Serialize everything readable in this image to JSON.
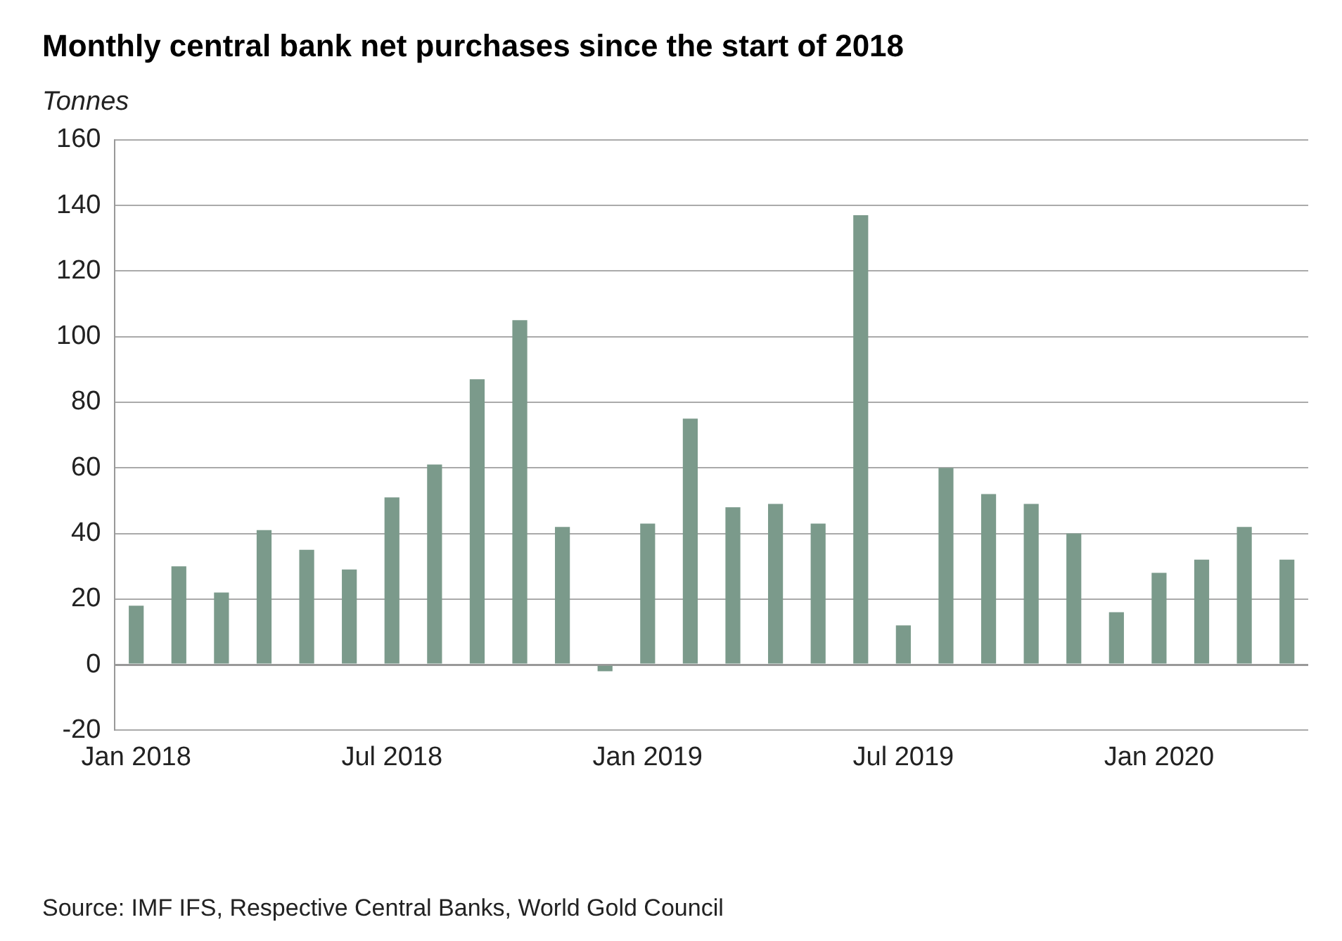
{
  "chart_data": {
    "type": "bar",
    "title": "Monthly central bank net purchases since the start of 2018",
    "ylabel": "Tonnes",
    "categories": [
      "Jan 2018",
      null,
      null,
      null,
      null,
      null,
      "Jul 2018",
      null,
      null,
      null,
      null,
      null,
      "Jan 2019",
      null,
      null,
      null,
      null,
      null,
      "Jul 2019",
      null,
      null,
      null,
      null,
      null,
      "Jan 2020",
      null,
      null,
      null
    ],
    "values": [
      18,
      30,
      22,
      41,
      35,
      29,
      51,
      61,
      87,
      105,
      42,
      -2,
      43,
      75,
      48,
      49,
      43,
      137,
      12,
      60,
      52,
      49,
      40,
      16,
      28,
      32,
      42,
      32
    ],
    "color": "#7b9a8b",
    "ylim": [
      -20,
      160
    ],
    "yticks": [
      -20,
      0,
      20,
      40,
      60,
      80,
      100,
      120,
      140,
      160
    ],
    "grid": "y",
    "annotations": [
      "Source: IMF IFS, Respective Central Banks, World Gold Council"
    ]
  }
}
